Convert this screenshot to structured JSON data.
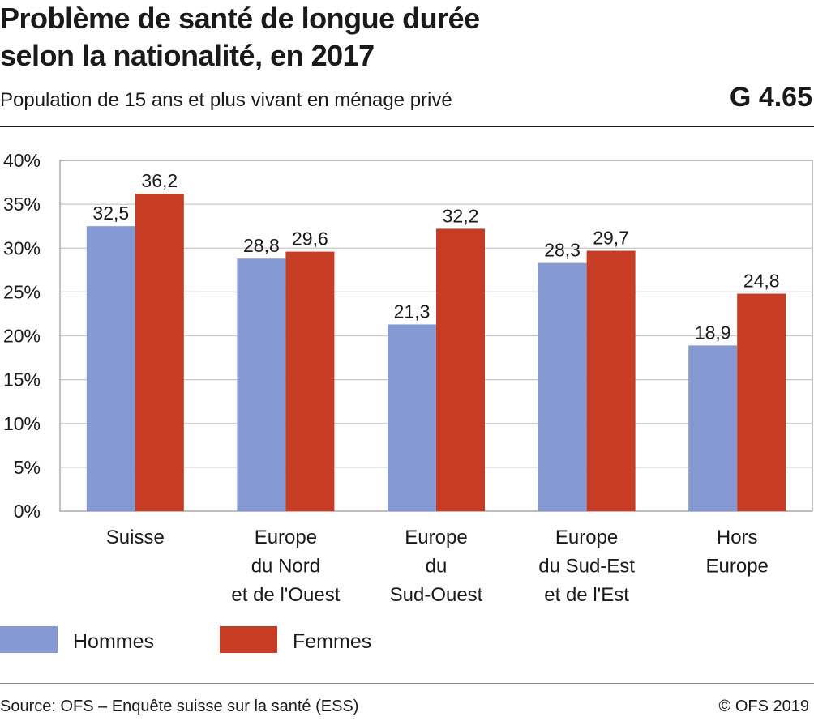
{
  "header": {
    "title_lines": [
      "Problème de santé de longue durée",
      "selon la nationalité, en 2017"
    ],
    "subtitle": "Population de 15 ans et plus vivant en ménage privé",
    "figure_id": "G 4.65"
  },
  "footer": {
    "source": "Source: OFS – Enquête suisse sur la santé (ESS)",
    "copyright": "© OFS 2019"
  },
  "colors": {
    "hommes": "#8799d2",
    "femmes": "#c63c24",
    "grid": "#c8c8c8",
    "plot_border": "#9a9a9a"
  },
  "chart_data": {
    "type": "bar",
    "title": "Problème de santé de longue durée selon la nationalité, en 2017",
    "categories": [
      [
        "Suisse"
      ],
      [
        "Europe",
        "du Nord",
        "et de l'Ouest"
      ],
      [
        "Europe",
        "du",
        "Sud-Ouest"
      ],
      [
        "Europe",
        "du Sud-Est",
        "et de l'Est"
      ],
      [
        "Hors",
        "Europe"
      ]
    ],
    "series": [
      {
        "name": "Hommes",
        "values": [
          32.5,
          28.8,
          21.3,
          28.3,
          18.9
        ],
        "labels": [
          "32,5",
          "28,8",
          "21,3",
          "28,3",
          "18,9"
        ]
      },
      {
        "name": "Femmes",
        "values": [
          36.2,
          29.6,
          32.2,
          29.7,
          24.8
        ],
        "labels": [
          "36,2",
          "29,6",
          "32,2",
          "29,7",
          "24,8"
        ]
      }
    ],
    "ylim": [
      0,
      40
    ],
    "yticks": [
      0,
      5,
      10,
      15,
      20,
      25,
      30,
      35,
      40
    ],
    "ytick_labels": [
      "0%",
      "5%",
      "10%",
      "15%",
      "20%",
      "25%",
      "30%",
      "35%",
      "40%"
    ],
    "xlabel": "",
    "ylabel": "",
    "grid": true,
    "legend_position": "bottom-left"
  }
}
